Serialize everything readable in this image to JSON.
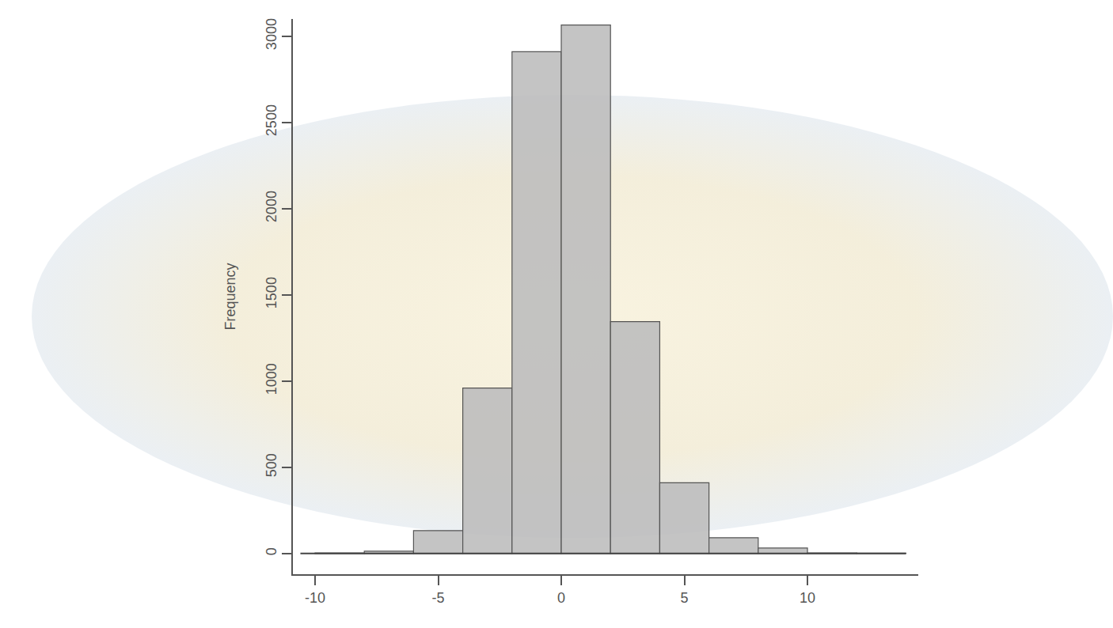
{
  "chart_data": {
    "type": "histogram",
    "y_label": "Frequency",
    "bins": [
      -10,
      -8,
      -6,
      -4,
      -2,
      0,
      2,
      4,
      6,
      8,
      10,
      12,
      14
    ],
    "values": [
      3,
      14,
      133,
      960,
      2910,
      3065,
      1345,
      410,
      92,
      32,
      3,
      2
    ],
    "color": "#bebebe",
    "xlim": [
      -10.9,
      14.5
    ],
    "xticks": [
      -10,
      -5,
      0,
      5,
      10
    ],
    "ylim": [
      -120,
      3100
    ],
    "yticks": [
      0,
      500,
      1000,
      1500,
      2000,
      2500,
      3000
    ],
    "grid": false
  }
}
